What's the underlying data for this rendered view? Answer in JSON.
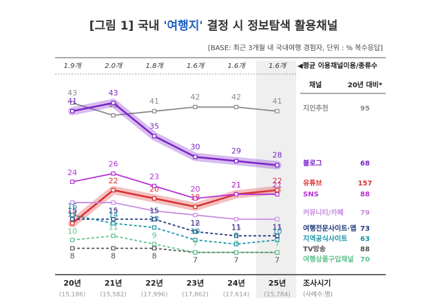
{
  "chart_data": {
    "type": "line",
    "title_parts": [
      "[그림 1] 국내 ",
      "'여행지'",
      " 결정 시 정보탐색 활용채널"
    ],
    "subtitle": "[BASE: 최근 3개월 내 국내여행 경험자, 단위 : % 복수응답]",
    "averages": [
      "1.9개",
      "2.0개",
      "1.8개",
      "1.6개",
      "1.6개",
      "1.6개"
    ],
    "averages_label": "◀평균 이용채널이용/종류수",
    "legend_headers": [
      "채널",
      "20년 대비*"
    ],
    "x_label": "조사시기",
    "sample_label": "(사례수:명)",
    "categories": [
      "20년",
      "21년",
      "22년",
      "23년",
      "24년",
      "25년"
    ],
    "samples": [
      "(15,186)",
      "(15,582)",
      "(17,996)",
      "(17,862)",
      "(17,614)",
      "(15,784)"
    ],
    "series": [
      {
        "name": "지인추천",
        "color": "#8a8a8a",
        "values": [
          43,
          40,
          41,
          42,
          42,
          41
        ],
        "change": 95,
        "dashed": false,
        "highlight": false
      },
      {
        "name": "블로그",
        "color": "#7b22c9",
        "values": [
          41,
          43,
          35,
          30,
          29,
          28
        ],
        "change": 68,
        "dashed": false,
        "highlight": true
      },
      {
        "name": "유튜브",
        "color": "#d93030",
        "values": [
          14,
          22,
          20,
          18,
          21,
          22
        ],
        "change": 157,
        "dashed": false,
        "highlight": true
      },
      {
        "name": "SNS",
        "color": "#b531d6",
        "values": [
          24,
          26,
          23,
          20,
          21,
          21
        ],
        "change": 88,
        "dashed": false,
        "highlight": false
      },
      {
        "name": "커뮤니티/카페",
        "color": "#c88be0",
        "values": [
          19,
          19,
          17,
          16,
          15,
          15
        ],
        "change": 79,
        "dashed": false,
        "highlight": false
      },
      {
        "name": "여행전문사이트·앱",
        "color": "#1f3a78",
        "values": [
          15,
          15,
          15,
          12,
          11,
          11
        ],
        "change": 73,
        "dashed": true,
        "highlight": false
      },
      {
        "name": "지역공식사이트",
        "color": "#1a93a8",
        "values": [
          16,
          14,
          13,
          10,
          9,
          10
        ],
        "change": 63,
        "dashed": true,
        "highlight": false
      },
      {
        "name": "TV방송",
        "color": "#555555",
        "values": [
          8,
          8,
          8,
          7,
          7,
          7
        ],
        "change": 88,
        "dashed": true,
        "highlight": false
      },
      {
        "name": "여행상품구입채널",
        "color": "#5fc28a",
        "values": [
          10,
          11,
          9,
          7,
          7,
          7
        ],
        "change": 70,
        "dashed": true,
        "highlight": false
      }
    ]
  }
}
